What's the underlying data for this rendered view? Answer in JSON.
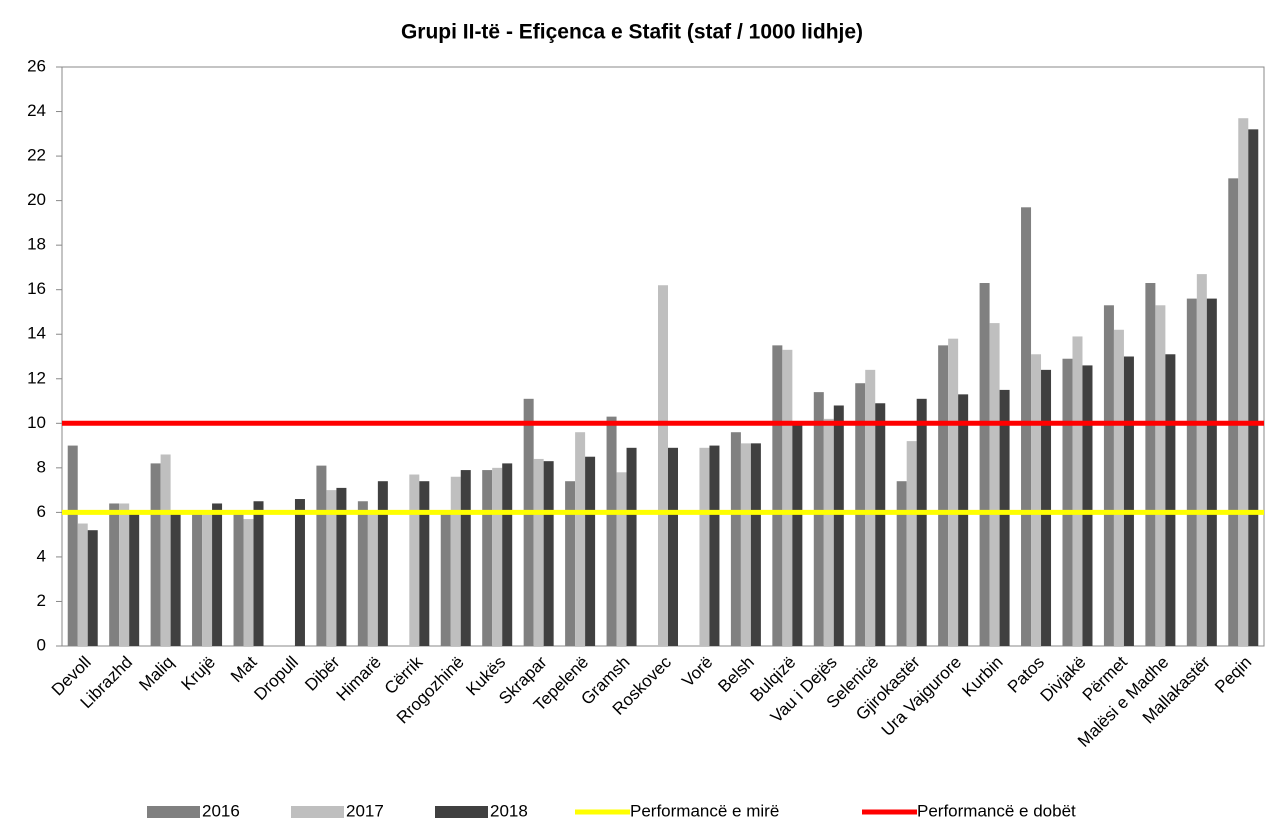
{
  "chart_data": {
    "type": "bar",
    "title": "Grupi II-të - Efiçenca e Stafit (staf / 1000 lidhje)",
    "categories": [
      "Devoll",
      "Librazhd",
      "Maliq",
      "Krujë",
      "Mat",
      "Dropull",
      "Dibër",
      "Himarë",
      "Cërrik",
      "Rrogozhinë",
      "Kukës",
      "Skrapar",
      "Tepelenë",
      "Gramsh",
      "Roskovec",
      "Vorë",
      "Belsh",
      "Bulqizë",
      "Vau i Dejës",
      "Selenicë",
      "Gjirokastër",
      "Ura Vajgurore",
      "Kurbin",
      "Patos",
      "Divjakë",
      "Përmet",
      "Malësi e Madhe",
      "Mallakastër",
      "Peqin"
    ],
    "series": [
      {
        "name": "2016",
        "color": "#808080",
        "values": [
          9.0,
          6.4,
          8.2,
          5.9,
          5.9,
          null,
          8.1,
          6.5,
          null,
          6.0,
          7.9,
          11.1,
          7.4,
          10.3,
          null,
          null,
          9.6,
          13.5,
          11.4,
          11.8,
          7.4,
          13.5,
          16.3,
          19.7,
          12.9,
          15.3,
          16.3,
          15.6,
          21.0
        ]
      },
      {
        "name": "2017",
        "color": "#bfbfbf",
        "values": [
          5.5,
          6.4,
          8.6,
          5.9,
          5.7,
          null,
          7.0,
          6.0,
          7.7,
          7.6,
          8.0,
          8.4,
          9.6,
          7.8,
          16.2,
          8.9,
          9.1,
          13.3,
          10.2,
          12.4,
          9.2,
          13.8,
          14.5,
          13.1,
          13.9,
          14.2,
          15.3,
          16.7,
          23.7
        ]
      },
      {
        "name": "2018",
        "color": "#404040",
        "values": [
          5.2,
          6.0,
          6.0,
          6.4,
          6.5,
          6.6,
          7.1,
          7.4,
          7.4,
          7.9,
          8.2,
          8.3,
          8.5,
          8.9,
          8.9,
          9.0,
          9.1,
          10.0,
          10.8,
          10.9,
          11.1,
          11.3,
          11.5,
          12.4,
          12.6,
          13.0,
          13.1,
          15.6,
          23.2
        ]
      }
    ],
    "reference_lines": [
      {
        "name": "Performancë e mirë",
        "value": 6,
        "color": "#ffff00"
      },
      {
        "name": "Performancë e dobët",
        "value": 10,
        "color": "#ff0000"
      }
    ],
    "ylim": [
      0,
      26
    ],
    "yticks": [
      0,
      2,
      4,
      6,
      8,
      10,
      12,
      14,
      16,
      18,
      20,
      22,
      24,
      26
    ],
    "legend": "bottom"
  }
}
